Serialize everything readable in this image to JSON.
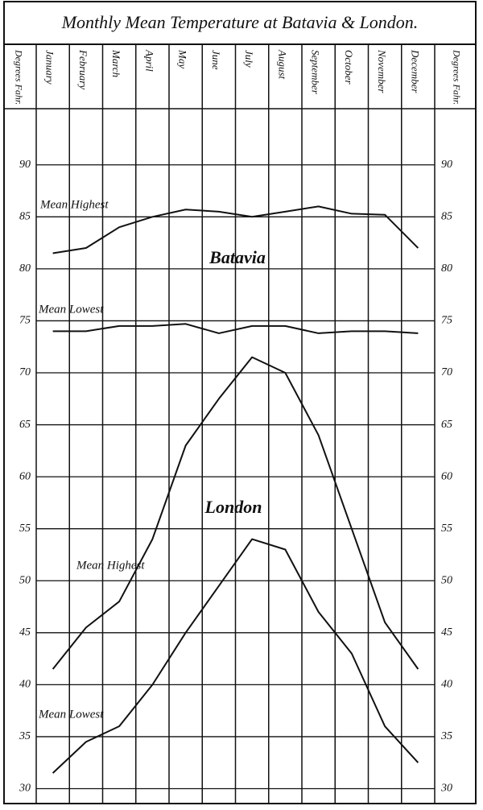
{
  "chart_data": {
    "type": "line",
    "title": "Monthly Mean Temperature at Batavia & London.",
    "y_label": "Degrees Fahr.",
    "categories": [
      "January",
      "February",
      "March",
      "April",
      "May",
      "June",
      "July",
      "August",
      "September",
      "October",
      "November",
      "December"
    ],
    "annotations": [
      "Batavia",
      "London"
    ],
    "series": [
      {
        "name": "Mean Highest",
        "color": "#111111",
        "values": [
          81.5,
          82,
          84,
          85,
          85.7,
          85.5,
          85,
          85.5,
          86,
          85.3,
          85.2,
          82
        ]
      },
      {
        "name": "Mean Lowest",
        "color": "#111111",
        "values": [
          74,
          74,
          74.5,
          74.5,
          74.7,
          73.8,
          74.5,
          74.5,
          73.8,
          74,
          74,
          73.8
        ]
      },
      {
        "name": "Mean Highest",
        "color": "#111111",
        "values": [
          41.5,
          45.5,
          48,
          54,
          63,
          67.5,
          71.5,
          70,
          64,
          55,
          46,
          41.5
        ]
      },
      {
        "name": "Mean Lowest",
        "color": "#111111",
        "values": [
          31.5,
          34.5,
          36,
          40,
          45,
          49.5,
          54,
          53,
          47,
          43,
          36,
          32.5
        ]
      }
    ],
    "ylim": [
      28.8,
      95.4
    ],
    "yticks": [
      30,
      35,
      40,
      45,
      50,
      55,
      60,
      65,
      70,
      75,
      80,
      85,
      90
    ],
    "grid": true
  }
}
